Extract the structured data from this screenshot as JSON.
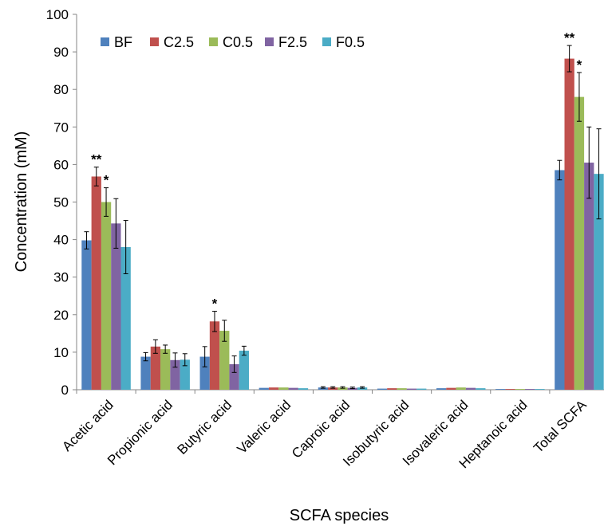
{
  "chart_data": {
    "type": "bar",
    "title": "",
    "xlabel": "SCFA species",
    "ylabel": "Concentration  (mM)",
    "ylim": [
      0,
      100
    ],
    "yticks": [
      0,
      10,
      20,
      30,
      40,
      50,
      60,
      70,
      80,
      90,
      100
    ],
    "grid": false,
    "legend_position": "top-left",
    "categories": [
      "Acetic acid",
      "Propionic acid",
      "Butyric acid",
      "Valeric acid",
      "Caproic acid",
      "Isobutyric acid",
      "Isovaleric acid",
      "Heptanoic acid",
      "Total SCFA"
    ],
    "series": [
      {
        "name": "BF",
        "color": "#4F81BD",
        "values": [
          39.8,
          8.8,
          8.8,
          0.5,
          0.6,
          0.3,
          0.4,
          0.2,
          58.5
        ],
        "errors": [
          2.3,
          1.1,
          2.7,
          0.1,
          0.2,
          0.1,
          0.1,
          0.1,
          2.6
        ]
      },
      {
        "name": "C2.5",
        "color": "#C0504D",
        "values": [
          56.8,
          11.5,
          18.2,
          0.6,
          0.6,
          0.4,
          0.5,
          0.2,
          88.2
        ],
        "errors": [
          2.5,
          1.8,
          2.7,
          0.1,
          0.2,
          0.1,
          0.1,
          0.1,
          3.5
        ]
      },
      {
        "name": "C0.5",
        "color": "#9BBB59",
        "values": [
          50.0,
          10.8,
          15.7,
          0.6,
          0.6,
          0.4,
          0.6,
          0.2,
          78.0
        ],
        "errors": [
          3.8,
          1.1,
          2.8,
          0.1,
          0.2,
          0.1,
          0.1,
          0.1,
          6.5
        ]
      },
      {
        "name": "F2.5",
        "color": "#8064A2",
        "values": [
          44.3,
          7.9,
          6.8,
          0.5,
          0.5,
          0.3,
          0.5,
          0.2,
          60.5
        ],
        "errors": [
          6.6,
          1.9,
          2.2,
          0.1,
          0.2,
          0.1,
          0.1,
          0.1,
          9.5
        ]
      },
      {
        "name": "F0.5",
        "color": "#4BACC6",
        "values": [
          38.0,
          8.0,
          10.4,
          0.4,
          0.6,
          0.3,
          0.4,
          0.2,
          57.5
        ],
        "errors": [
          7.1,
          1.6,
          1.2,
          0.1,
          0.2,
          0.1,
          0.1,
          0.1,
          12.0
        ]
      }
    ],
    "annotations": [
      {
        "category": "Acetic acid",
        "series": "C2.5",
        "text": "**"
      },
      {
        "category": "Acetic acid",
        "series": "C0.5",
        "text": "*"
      },
      {
        "category": "Butyric acid",
        "series": "C2.5",
        "text": "*"
      },
      {
        "category": "Total SCFA",
        "series": "C2.5",
        "text": "**"
      },
      {
        "category": "Total SCFA",
        "series": "C0.5",
        "text": "*"
      }
    ]
  }
}
